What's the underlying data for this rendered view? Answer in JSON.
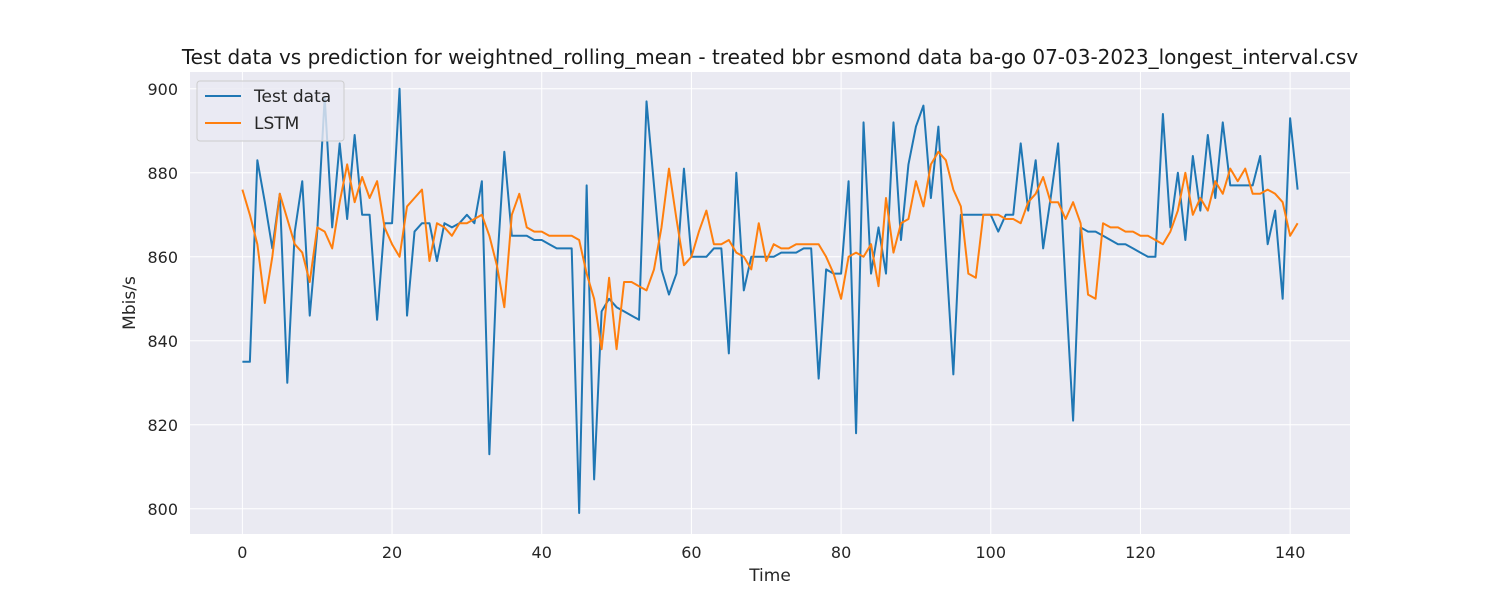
{
  "chart_data": {
    "type": "line",
    "title": "Test data vs prediction for weightned_rolling_mean - treated bbr esmond data ba-go 07-03-2023_longest_interval.csv",
    "xlabel": "Time",
    "ylabel": "Mbis/s",
    "xlim": [
      -7,
      148
    ],
    "ylim": [
      794,
      904
    ],
    "xticks": [
      0,
      20,
      40,
      60,
      80,
      100,
      120,
      140
    ],
    "yticks": [
      800,
      820,
      840,
      860,
      880,
      900
    ],
    "grid": true,
    "legend_position": "upper-left",
    "series": [
      {
        "name": "Test data",
        "color": "#1f77b4",
        "values": [
          835,
          835,
          883,
          873,
          862,
          875,
          830,
          866,
          878,
          846,
          866,
          898,
          867,
          887,
          869,
          889,
          870,
          870,
          845,
          868,
          868,
          900,
          846,
          866,
          868,
          868,
          859,
          868,
          867,
          868,
          870,
          868,
          878,
          813,
          857,
          885,
          865,
          865,
          865,
          864,
          864,
          863,
          862,
          862,
          862,
          799,
          877,
          807,
          847,
          850,
          848,
          847,
          846,
          845,
          897,
          877,
          857,
          851,
          856,
          881,
          860,
          860,
          860,
          862,
          862,
          837,
          880,
          852,
          860,
          860,
          860,
          860,
          861,
          861,
          861,
          862,
          862,
          831,
          857,
          856,
          856,
          878,
          818,
          892,
          856,
          867,
          856,
          892,
          864,
          882,
          891,
          896,
          874,
          891,
          861,
          832,
          870,
          870,
          870,
          870,
          870,
          866,
          870,
          870,
          887,
          871,
          883,
          862,
          874,
          887,
          853,
          821,
          867,
          866,
          866,
          865,
          864,
          863,
          863,
          862,
          861,
          860,
          860,
          894,
          867,
          880,
          864,
          884,
          871,
          889,
          874,
          892,
          877,
          877,
          877,
          877,
          884,
          863,
          871,
          850,
          893,
          876
        ]
      },
      {
        "name": "LSTM",
        "color": "#ff7f0e",
        "values": [
          876,
          870,
          863,
          849,
          860,
          875,
          869,
          863,
          861,
          854,
          867,
          866,
          862,
          873,
          882,
          873,
          879,
          874,
          878,
          867,
          863,
          860,
          872,
          874,
          876,
          859,
          868,
          867,
          865,
          868,
          868,
          869,
          870,
          865,
          858,
          848,
          870,
          875,
          867,
          866,
          866,
          865,
          865,
          865,
          865,
          864,
          856,
          850,
          838,
          855,
          838,
          854,
          854,
          853,
          852,
          857,
          867,
          881,
          869,
          858,
          860,
          866,
          871,
          863,
          863,
          864,
          861,
          860,
          857,
          868,
          859,
          863,
          862,
          862,
          863,
          863,
          863,
          863,
          860,
          856,
          850,
          860,
          861,
          860,
          863,
          853,
          874,
          861,
          868,
          869,
          878,
          872,
          882,
          885,
          883,
          876,
          872,
          856,
          855,
          870,
          870,
          870,
          869,
          869,
          868,
          873,
          875,
          879,
          873,
          873,
          869,
          873,
          868,
          851,
          850,
          868,
          867,
          867,
          866,
          866,
          865,
          865,
          864,
          863,
          866,
          871,
          880,
          870,
          874,
          871,
          878,
          875,
          881,
          878,
          881,
          875,
          875,
          876,
          875,
          873,
          865,
          868
        ]
      }
    ]
  }
}
